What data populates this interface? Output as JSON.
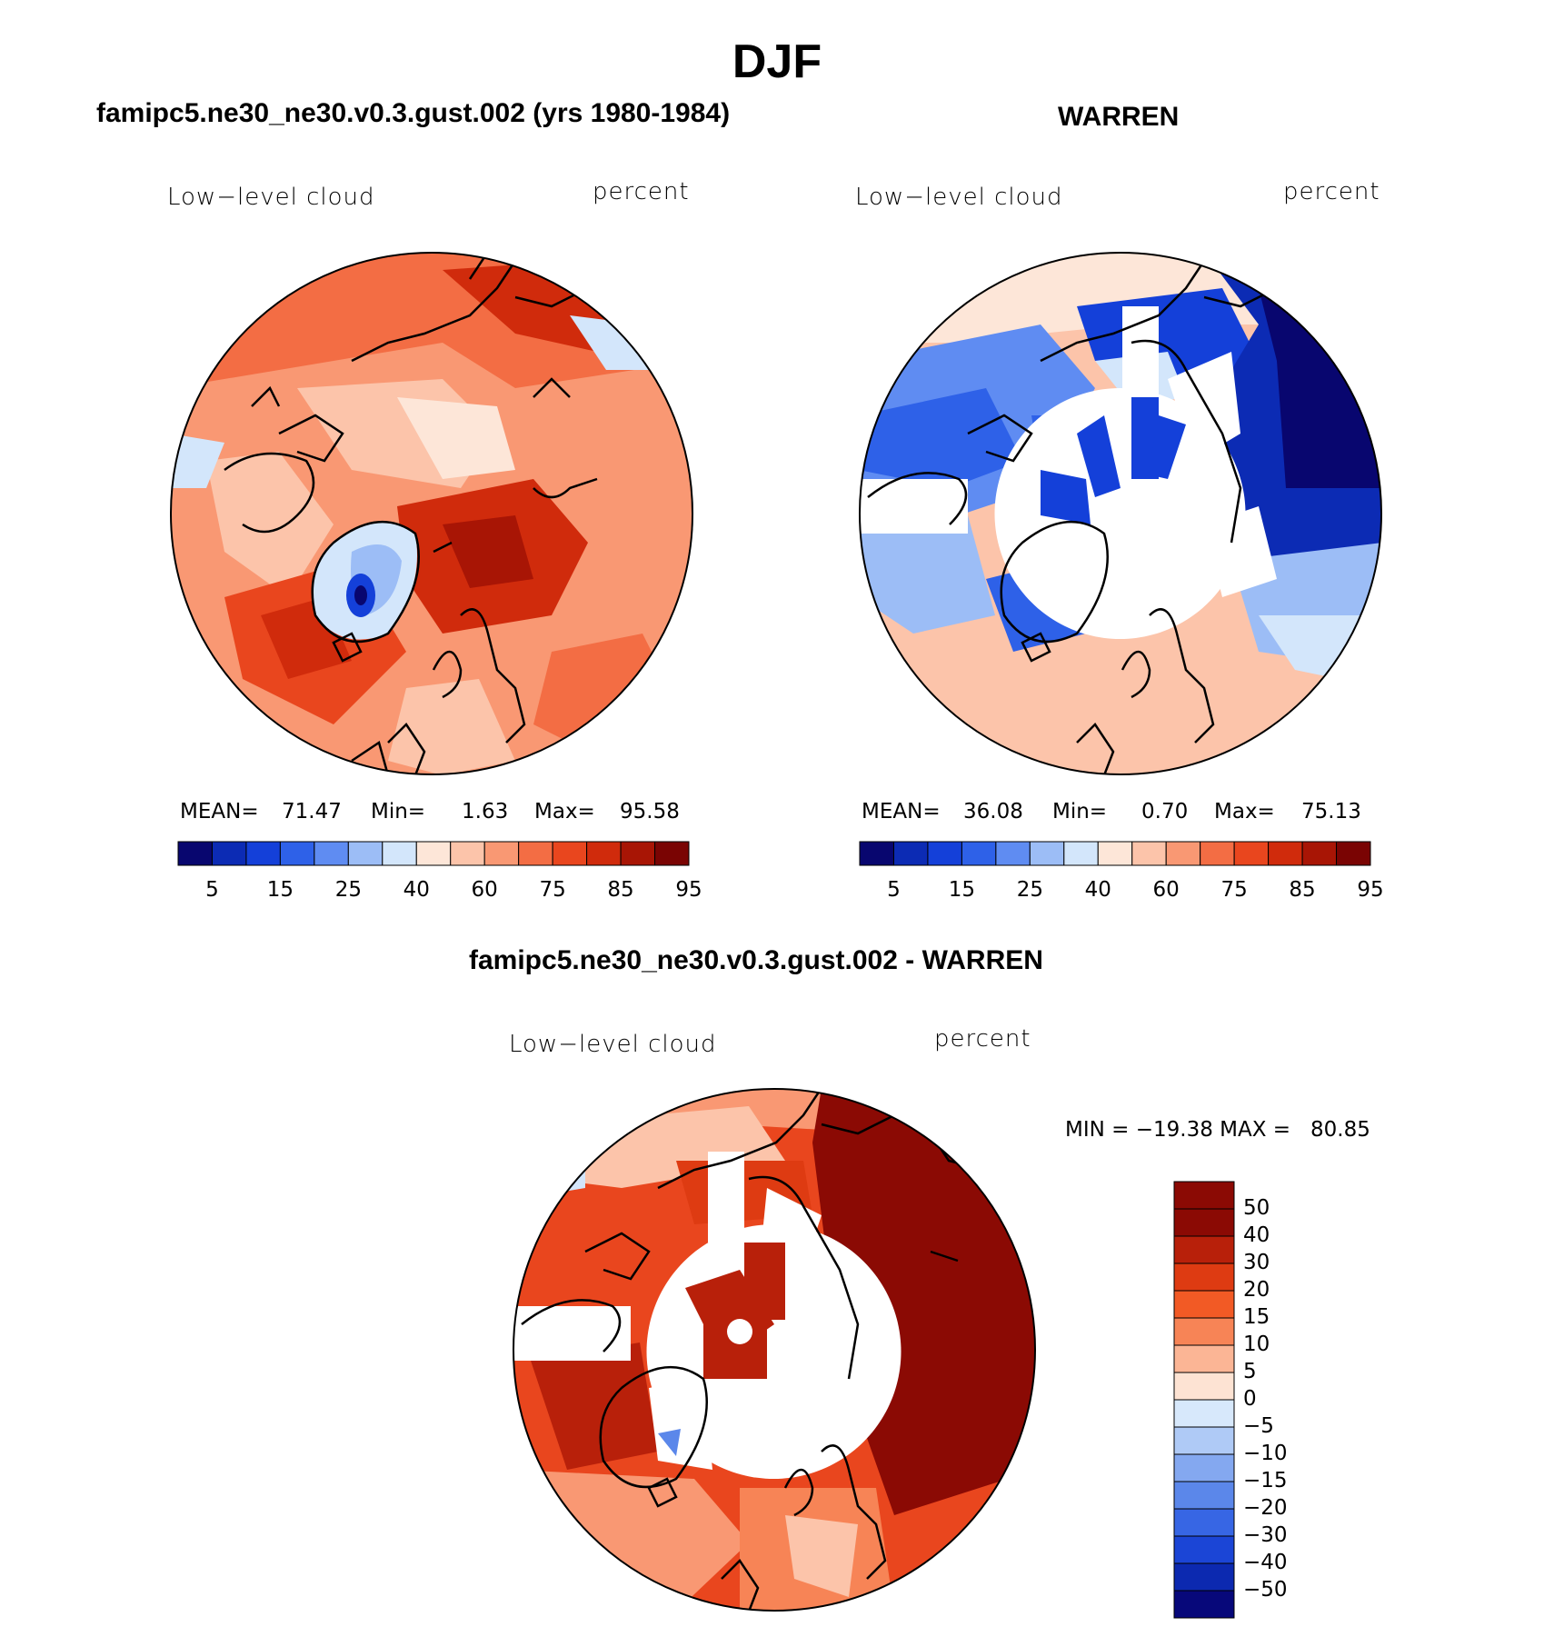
{
  "title": "DJF",
  "panels": [
    {
      "heading": "famipc5.ne30_ne30.v0.3.gust.002 (yrs 1980-1984)",
      "variable": "Low−level cloud",
      "units": "percent",
      "stats": {
        "mean_label": "MEAN=",
        "mean": "71.47",
        "min_label": "Min=",
        "min": "1.63",
        "max_label": "Max=",
        "max": "95.58"
      }
    },
    {
      "heading": "WARREN",
      "variable": "Low−level cloud",
      "units": "percent",
      "stats": {
        "mean_label": "MEAN=",
        "mean": "36.08",
        "min_label": "Min=",
        "min": "0.70",
        "max_label": "Max=",
        "max": "75.13"
      }
    },
    {
      "heading": "famipc5.ne30_ne30.v0.3.gust.002 - WARREN",
      "variable": "Low−level cloud",
      "units": "percent",
      "stats_line": "MIN = −19.38 MAX =   80.85"
    }
  ],
  "abs_colorbar": {
    "labels": [
      "5",
      "15",
      "25",
      "40",
      "60",
      "75",
      "85",
      "95"
    ],
    "colors": [
      "#08066f",
      "#0c2bb4",
      "#1440d9",
      "#2e61e8",
      "#5f8cf2",
      "#9cbdf6",
      "#d3e6fb",
      "#fde6d8",
      "#fcc4aa",
      "#f99873",
      "#f36d44",
      "#e9461e",
      "#d02b0c",
      "#a81505",
      "#7a0403"
    ]
  },
  "diff_colorbar": {
    "labels": [
      "50",
      "40",
      "30",
      "20",
      "15",
      "10",
      "5",
      "0",
      "−5",
      "−10",
      "−15",
      "−20",
      "−30",
      "−40",
      "−50"
    ],
    "colors": [
      "#8b0a04",
      "#b8200a",
      "#de3b12",
      "#f25a25",
      "#f78456",
      "#fbb595",
      "#fde3d3",
      "#d7e8fb",
      "#afcaf6",
      "#84a8f0",
      "#5b87ea",
      "#3766e4",
      "#1b45d6",
      "#0c29b0",
      "#07087a"
    ]
  },
  "map_colors": {
    "ocean_warm": "#f36d44",
    "blue_deep": "#08066f",
    "blue_mid": "#1440d9",
    "pale_orange": "#fcc4aa",
    "dark_red": "#8b0a04"
  }
}
